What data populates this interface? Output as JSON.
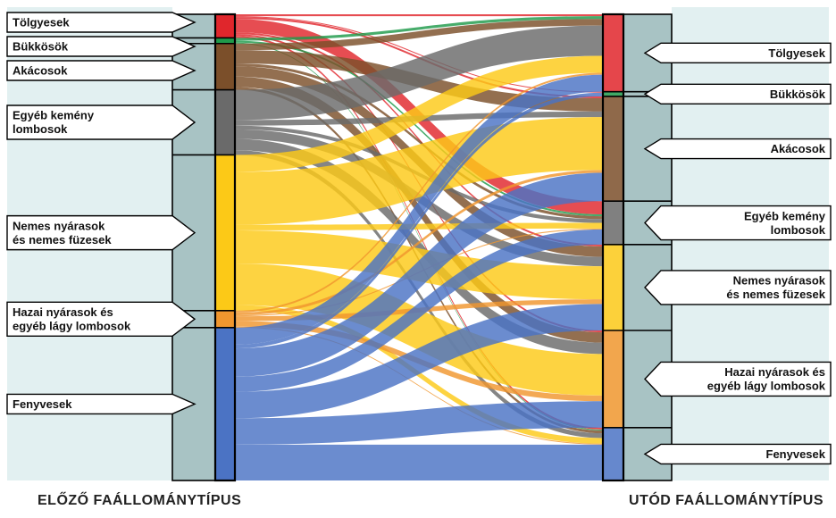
{
  "left_axis_title": "ELŐZŐ FAÁLLOMÁNYTÍPUS",
  "right_axis_title": "UTÓD FAÁLLOMÁNYTÍPUS",
  "colors": {
    "Tölgyesek": "#e0262c",
    "Bükkösök": "#1f9a4b",
    "Akácosok": "#7b4f2a",
    "Egyéb kemény lombosok": "#6a6a6a",
    "Nemes nyárasok és nemes füzesek": "#fcc917",
    "Hazai nyárasok és egyéb lágy lombosok": "#f0962e",
    "Fenyvesek": "#4b73c4",
    "axis_bar": "#a8c3c4",
    "panel_bg": "#e2f0f1"
  },
  "source_nodes": [
    {
      "key": "Tölgyesek",
      "lines": [
        "Tölgyesek"
      ]
    },
    {
      "key": "Bükkösök",
      "lines": [
        "Bükkösök"
      ]
    },
    {
      "key": "Akácosok",
      "lines": [
        "Akácosok"
      ]
    },
    {
      "key": "Egyéb kemény lombosok",
      "lines": [
        "Egyéb kemény",
        "lombosok"
      ]
    },
    {
      "key": "Nemes nyárasok és nemes füzesek",
      "lines": [
        "Nemes nyárasok",
        "és nemes füzesek"
      ]
    },
    {
      "key": "Hazai nyárasok és egyéb lágy lombosok",
      "lines": [
        "Hazai nyárasok és",
        "egyéb lágy lombosok"
      ]
    },
    {
      "key": "Fenyvesek",
      "lines": [
        "Fenyvesek"
      ]
    }
  ],
  "target_nodes": [
    {
      "key": "Tölgyesek",
      "lines": [
        "Tölgyesek"
      ]
    },
    {
      "key": "Bükkösök",
      "lines": [
        "Bükkösök"
      ]
    },
    {
      "key": "Akácosok",
      "lines": [
        "Akácosok"
      ]
    },
    {
      "key": "Egyéb kemény lombosok",
      "lines": [
        "Egyéb kemény",
        "lombosok"
      ]
    },
    {
      "key": "Nemes nyárasok és nemes füzesek",
      "lines": [
        "Nemes nyárasok",
        "és nemes füzesek"
      ]
    },
    {
      "key": "Hazai nyárasok és egyéb lágy lombosok",
      "lines": [
        "Hazai nyárasok és",
        "egyéb lágy lombosok"
      ]
    },
    {
      "key": "Fenyvesek",
      "lines": [
        "Fenyvesek"
      ]
    }
  ],
  "flows": [
    {
      "from": 0,
      "to": 0,
      "value": 2
    },
    {
      "from": 0,
      "to": 1,
      "value": 1
    },
    {
      "from": 0,
      "to": 2,
      "value": 2
    },
    {
      "from": 0,
      "to": 3,
      "value": 14
    },
    {
      "from": 0,
      "to": 4,
      "value": 2
    },
    {
      "from": 0,
      "to": 5,
      "value": 2
    },
    {
      "from": 0,
      "to": 6,
      "value": 2
    },
    {
      "from": 1,
      "to": 0,
      "value": 3
    },
    {
      "from": 1,
      "to": 3,
      "value": 2
    },
    {
      "from": 1,
      "to": 6,
      "value": 1
    },
    {
      "from": 2,
      "to": 0,
      "value": 7
    },
    {
      "from": 2,
      "to": 2,
      "value": 14
    },
    {
      "from": 2,
      "to": 3,
      "value": 3
    },
    {
      "from": 2,
      "to": 4,
      "value": 11
    },
    {
      "from": 2,
      "to": 5,
      "value": 11
    },
    {
      "from": 2,
      "to": 6,
      "value": 3
    },
    {
      "from": 3,
      "to": 0,
      "value": 32
    },
    {
      "from": 3,
      "to": 2,
      "value": 6
    },
    {
      "from": 3,
      "to": 3,
      "value": 4
    },
    {
      "from": 3,
      "to": 4,
      "value": 10
    },
    {
      "from": 3,
      "to": 5,
      "value": 12
    },
    {
      "from": 3,
      "to": 6,
      "value": 5
    },
    {
      "from": 4,
      "to": 0,
      "value": 18
    },
    {
      "from": 4,
      "to": 2,
      "value": 56
    },
    {
      "from": 4,
      "to": 3,
      "value": 6
    },
    {
      "from": 4,
      "to": 4,
      "value": 35
    },
    {
      "from": 4,
      "to": 5,
      "value": 44
    },
    {
      "from": 4,
      "to": 6,
      "value": 6
    },
    {
      "from": 5,
      "to": 0,
      "value": 2
    },
    {
      "from": 5,
      "to": 2,
      "value": 3
    },
    {
      "from": 5,
      "to": 3,
      "value": 1
    },
    {
      "from": 5,
      "to": 4,
      "value": 5
    },
    {
      "from": 5,
      "to": 5,
      "value": 6
    },
    {
      "from": 5,
      "to": 6,
      "value": 1
    },
    {
      "from": 6,
      "to": 0,
      "value": 18
    },
    {
      "from": 6,
      "to": 1,
      "value": 4
    },
    {
      "from": 6,
      "to": 2,
      "value": 30
    },
    {
      "from": 6,
      "to": 3,
      "value": 16
    },
    {
      "from": 6,
      "to": 4,
      "value": 28
    },
    {
      "from": 6,
      "to": 5,
      "value": 28
    },
    {
      "from": 6,
      "to": 6,
      "value": 38
    }
  ]
}
